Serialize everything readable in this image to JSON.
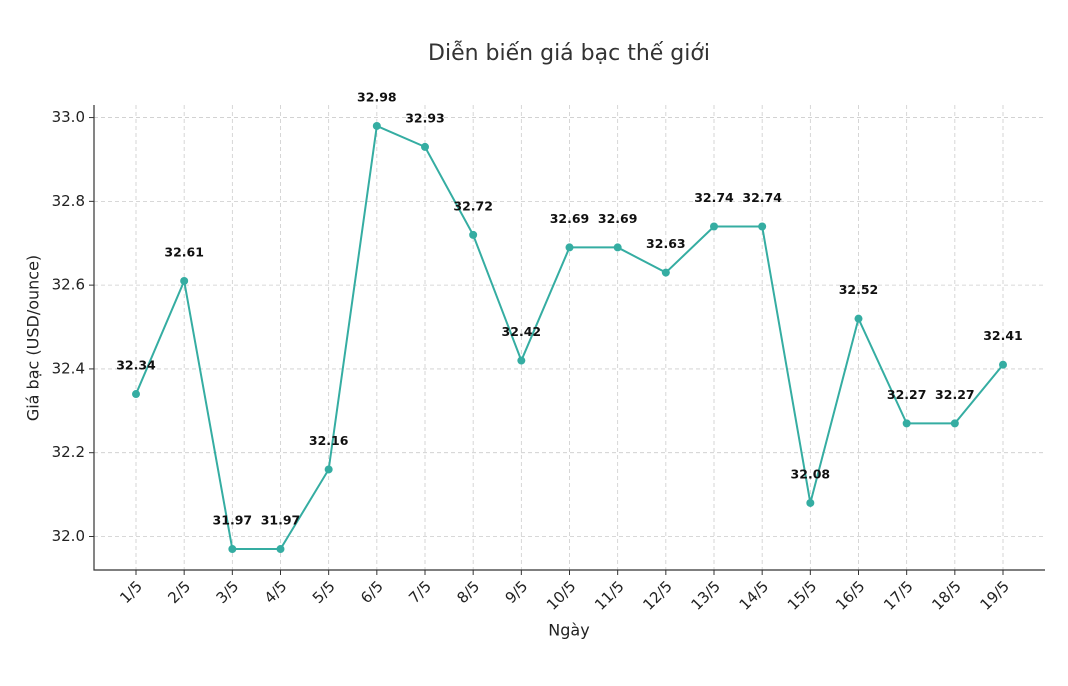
{
  "chart_data": {
    "type": "line",
    "title": "Diễn biến giá bạc thế giới",
    "x_label": "Ngày",
    "y_label": "Giá bạc (USD/ounce)",
    "categories": [
      "1/5",
      "2/5",
      "3/5",
      "4/5",
      "5/5",
      "6/5",
      "7/5",
      "8/5",
      "9/5",
      "10/5",
      "11/5",
      "12/5",
      "13/5",
      "14/5",
      "15/5",
      "16/5",
      "17/5",
      "18/5",
      "19/5"
    ],
    "series": [
      {
        "name": "Giá bạc",
        "color": "#35ada2",
        "values": [
          32.34,
          32.61,
          31.97,
          31.97,
          32.16,
          32.98,
          32.93,
          32.72,
          32.42,
          32.69,
          32.69,
          32.63,
          32.74,
          32.74,
          32.08,
          32.52,
          32.27,
          32.27,
          32.41
        ]
      }
    ],
    "ylim": [
      31.92,
      33.03
    ],
    "yticks": [
      {
        "value": 32,
        "label": "32.0"
      },
      32.2,
      32.4,
      32.6,
      32.8,
      {
        "value": 33,
        "label": "33.0"
      }
    ],
    "grid": true
  }
}
